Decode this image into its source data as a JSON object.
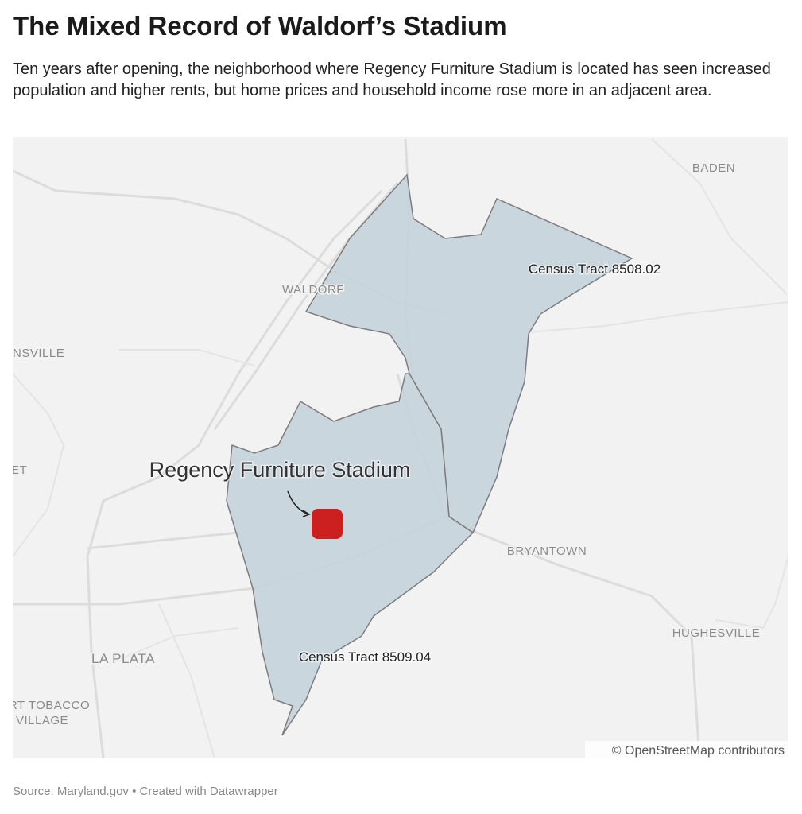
{
  "header": {
    "title": "The Mixed Record of Waldorf’s Stadium",
    "subtitle": "Ten years after opening, the neighborhood where Regency Furniture Stadium is located has seen increased population and higher rents, but home prices and household income rose more in an adjacent area."
  },
  "map": {
    "place_labels": [
      "BADEN",
      "WALDORF",
      "NSVILLE",
      "ET",
      "BRYANTOWN",
      "HUGHESVILLE",
      "LA PLATA",
      "RT TOBACCO",
      "VILLAGE"
    ],
    "tract_labels": [
      "Census Tract 8508.02",
      "Census Tract 8509.04"
    ],
    "stadium_label": "Regency Furniture Stadium",
    "attribution": "© OpenStreetMap contributors"
  },
  "footer": {
    "source": "Source: Maryland.gov • Created with Datawrapper"
  }
}
